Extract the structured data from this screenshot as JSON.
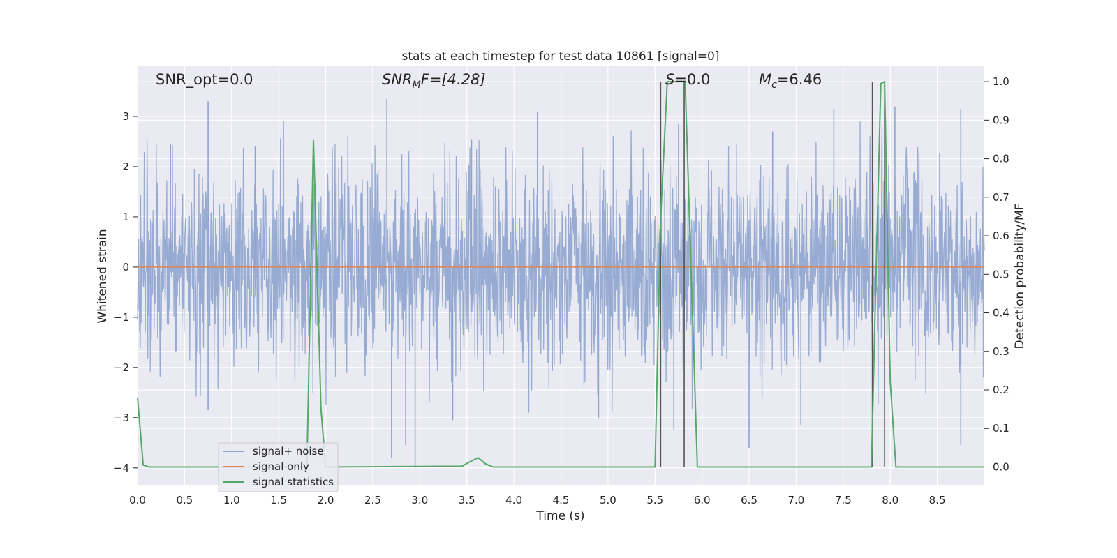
{
  "chart_data": {
    "type": "line",
    "title": "stats at each timestep for test data 10861 [signal=0]",
    "xlabel": "Time (s)",
    "ylabel": "Whitened strain",
    "ylabel_right": "Detection probability/MF",
    "xlim": [
      0.0,
      9.0
    ],
    "ylim": [
      -4.35,
      4.0
    ],
    "ylim_right": [
      -0.048,
      1.04
    ],
    "x_ticks": [
      "0.0",
      "0.5",
      "1.0",
      "1.5",
      "2.0",
      "2.5",
      "3.0",
      "3.5",
      "4.0",
      "4.5",
      "5.0",
      "5.5",
      "6.0",
      "6.5",
      "7.0",
      "7.5",
      "8.0",
      "8.5"
    ],
    "y_ticks": [
      "3",
      "2",
      "1",
      "0",
      "−1",
      "−2",
      "−3",
      "−4"
    ],
    "y_ticks_right": [
      "1.0",
      "0.9",
      "0.8",
      "0.7",
      "0.6",
      "0.5",
      "0.4",
      "0.3",
      "0.2",
      "0.1",
      "0.0"
    ],
    "grid": true,
    "annotations": {
      "snr_opt": "SNR_opt=0.0",
      "snr_mf_base": "SNR",
      "snr_mf_sub": "M",
      "snr_mf_rest": "F=[4.28]",
      "s_italic": "S",
      "s_rest": "=0.0",
      "mc_base": "M",
      "mc_sub": "c",
      "mc_rest": "=6.46"
    },
    "legend": {
      "placement": "lower-left",
      "entries": [
        "signal+ noise",
        "signal only",
        "signal statistics"
      ]
    },
    "series": [
      {
        "name": "signal+ noise",
        "color": "#8fa5cf",
        "description_axis": "left",
        "kind": "noise",
        "std": 0.95,
        "sample_rate": 2048,
        "peaks_up": [
          [
            0.75,
            3.3
          ],
          [
            2.65,
            3.35
          ],
          [
            4.25,
            3.1
          ],
          [
            5.75,
            2.85
          ],
          [
            7.4,
            3.15
          ],
          [
            8.05,
            3.2
          ],
          [
            8.75,
            3.15
          ],
          [
            0.35,
            2.45
          ],
          [
            1.25,
            2.4
          ],
          [
            3.55,
            2.55
          ],
          [
            6.75,
            2.7
          ],
          [
            7.95,
            2.95
          ]
        ],
        "peaks_down": [
          [
            2.7,
            -3.8
          ],
          [
            2.95,
            -4.0
          ],
          [
            2.85,
            -3.55
          ],
          [
            6.5,
            -3.6
          ],
          [
            8.75,
            -3.55
          ],
          [
            5.7,
            -3.25
          ],
          [
            3.35,
            -3.05
          ],
          [
            4.9,
            -3.0
          ],
          [
            7.05,
            -3.15
          ],
          [
            0.75,
            -2.85
          ]
        ]
      },
      {
        "name": "signal only",
        "color": "#dd8452",
        "axis": "left",
        "x": [
          0.0,
          9.0
        ],
        "y": [
          0.0,
          0.0
        ]
      },
      {
        "name": "signal statistics",
        "color": "#55a868",
        "axis": "right",
        "x": [
          0.0,
          0.06,
          0.12,
          1.5,
          1.8,
          1.87,
          1.95,
          2.0,
          3.45,
          3.52,
          3.62,
          3.7,
          3.78,
          5.5,
          5.56,
          5.63,
          5.82,
          5.95,
          7.8,
          7.84,
          7.9,
          7.94,
          8.0,
          8.06,
          9.0
        ],
        "y": [
          0.18,
          0.005,
          0.0,
          0.0,
          0.0,
          0.85,
          0.15,
          0.0,
          0.002,
          0.012,
          0.024,
          0.008,
          0.0,
          0.0,
          0.65,
          1.0,
          1.0,
          0.0,
          0.0,
          0.42,
          0.995,
          1.0,
          0.22,
          0.0,
          0.0
        ]
      }
    ],
    "vertical_markers": [
      5.56,
      5.81,
      7.81,
      7.94
    ],
    "vertical_marker_color": "#555555",
    "colors": {
      "plot_bg": "#eaeaf2",
      "grid": "#ffffff",
      "text": "#262626"
    }
  }
}
